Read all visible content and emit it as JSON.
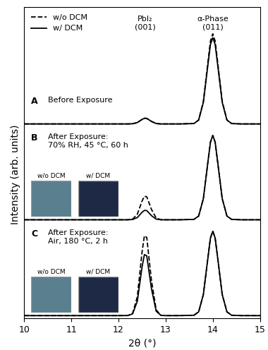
{
  "chart_data": [
    {
      "type": "line",
      "label": "A",
      "annotation": "Before Exposure",
      "x": [
        10,
        10.5,
        11,
        11.5,
        12,
        12.2,
        12.3,
        12.4,
        12.5,
        12.55,
        12.6,
        12.7,
        12.8,
        12.9,
        13,
        13.3,
        13.6,
        13.7,
        13.8,
        13.9,
        13.95,
        14,
        14.05,
        14.1,
        14.2,
        14.3,
        14.4,
        14.6,
        15
      ],
      "series": [
        {
          "name": "w/o DCM",
          "color": "#000000",
          "line_style": "dashed",
          "values": [
            3,
            3,
            3,
            3,
            3,
            3,
            3.2,
            4.4,
            7.7,
            8.9,
            8.8,
            5.6,
            3.4,
            3,
            3,
            3,
            3.4,
            7.1,
            26.5,
            68.8,
            89.5,
            97,
            89.5,
            68.8,
            26.5,
            7.1,
            3.4,
            3,
            3
          ]
        },
        {
          "name": "w/ DCM",
          "color": "#000000",
          "line_style": "solid",
          "values": [
            3,
            3,
            3,
            3,
            3,
            3,
            3.2,
            4.4,
            7.7,
            8.9,
            8.8,
            5.6,
            3.4,
            3,
            3,
            3,
            3.4,
            7,
            25.5,
            66,
            85.8,
            93,
            85.8,
            66,
            25.5,
            7,
            3.4,
            3,
            3
          ]
        }
      ],
      "peak_labels": [
        {
          "text": "PbI₂\n(001)",
          "x": 12.57
        },
        {
          "text": "α-Phase\n(011)",
          "x": 14.0
        }
      ],
      "legend": "upper left",
      "xlim": [
        10,
        15
      ],
      "ylim": [
        0,
        125
      ],
      "tick_labels": false
    },
    {
      "type": "line",
      "label": "B",
      "annotation": "After Exposure:\n70% RH, 45 °C, 60 h",
      "inset_labels": [
        "w/o DCM",
        "w/ DCM"
      ],
      "x": [
        10,
        10.5,
        11,
        11.5,
        12,
        12.2,
        12.3,
        12.4,
        12.5,
        12.55,
        12.6,
        12.7,
        12.8,
        12.9,
        13,
        13.3,
        13.6,
        13.7,
        13.8,
        13.9,
        13.95,
        14,
        14.05,
        14.1,
        14.2,
        14.3,
        14.4,
        14.6,
        15
      ],
      "series": [
        {
          "name": "w/o DCM",
          "color": "#000000",
          "line_style": "dashed",
          "values": [
            3,
            3,
            3,
            3,
            3,
            3,
            3.7,
            8.8,
            22.5,
            27.5,
            27,
            13.8,
            4.8,
            3.1,
            3,
            3,
            3.4,
            6.9,
            25,
            64.6,
            84,
            91,
            84,
            64.6,
            25,
            6.9,
            3.4,
            3,
            3
          ]
        },
        {
          "name": "w/ DCM",
          "color": "#000000",
          "line_style": "solid",
          "values": [
            3,
            3,
            3,
            3,
            3,
            3,
            3.3,
            5.3,
            10.8,
            12.8,
            12.6,
            7.3,
            3.7,
            3,
            3,
            3,
            3.4,
            6.9,
            25,
            64.6,
            84,
            91,
            84,
            64.6,
            25,
            6.9,
            3.4,
            3,
            3
          ]
        }
      ],
      "ylabel": "Intensity (arb. units)",
      "xlim": [
        10,
        15
      ],
      "ylim": [
        0,
        100
      ],
      "tick_labels": false
    },
    {
      "type": "line",
      "label": "C",
      "annotation": "After Exposure:\nAir, 180 °C, 2 h",
      "inset_labels": [
        "w/o DCM",
        "w/ DCM"
      ],
      "x": [
        10,
        10.5,
        11,
        11.5,
        12,
        12.2,
        12.3,
        12.4,
        12.5,
        12.55,
        12.6,
        12.7,
        12.8,
        12.9,
        13,
        13.3,
        13.6,
        13.7,
        13.8,
        13.9,
        13.95,
        14,
        14.05,
        14.1,
        14.2,
        14.3,
        14.4,
        14.6,
        15
      ],
      "series": [
        {
          "name": "w/o DCM",
          "color": "#000000",
          "line_style": "dashed",
          "values": [
            3,
            3,
            3,
            3,
            3,
            3.1,
            5.3,
            22.6,
            69.3,
            86.3,
            84.6,
            39.6,
            9,
            3.3,
            3,
            3,
            3.4,
            6.9,
            25,
            64.6,
            84,
            91,
            84,
            64.6,
            25,
            6.9,
            3.4,
            3,
            3
          ]
        },
        {
          "name": "w/ DCM",
          "color": "#000000",
          "line_style": "solid",
          "values": [
            3,
            3,
            3,
            3,
            3,
            3.1,
            4.8,
            18,
            53.7,
            66.7,
            65.4,
            31,
            7.6,
            3.3,
            3,
            3,
            3.4,
            6.9,
            25,
            64.6,
            84,
            91,
            84,
            64.6,
            25,
            6.9,
            3.4,
            3,
            3
          ]
        }
      ],
      "xlabel": "2θ (°)",
      "xlim": [
        10,
        15
      ],
      "ylim": [
        0,
        100
      ],
      "xticks": [
        10,
        11,
        12,
        13,
        14,
        15
      ],
      "tick_labels": "x"
    }
  ]
}
